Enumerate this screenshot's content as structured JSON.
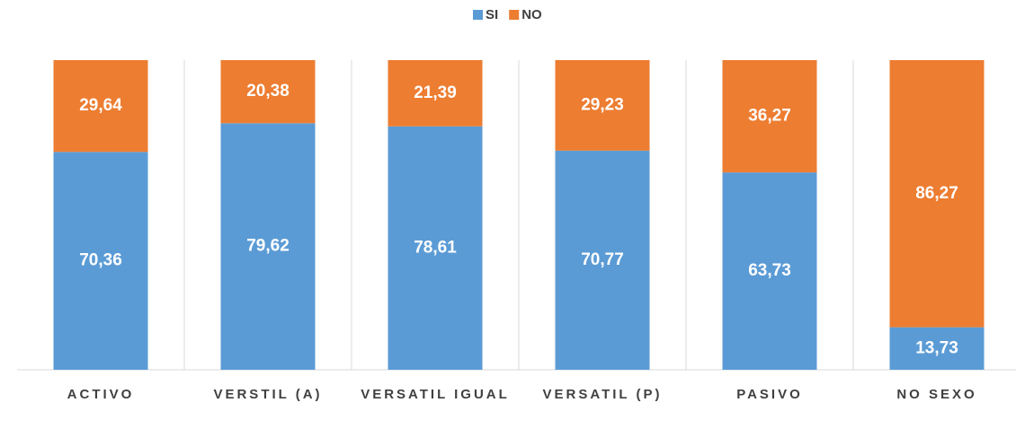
{
  "chart_data": {
    "type": "stacked_bar",
    "categories": [
      "ACTIVO",
      "VERSTIL (A)",
      "VERSATIL IGUAL",
      "VERSATIL (P)",
      "PASIVO",
      "NO SEXO"
    ],
    "series": [
      {
        "name": "SI",
        "color": "#5b9bd5",
        "values": [
          70.36,
          79.62,
          78.61,
          70.77,
          63.73,
          13.73
        ],
        "value_labels": [
          "70,36",
          "79,62",
          "78,61",
          "70,77",
          "63,73",
          "13,73"
        ]
      },
      {
        "name": "NO",
        "color": "#ed7d31",
        "values": [
          29.64,
          20.38,
          21.39,
          29.23,
          36.27,
          86.27
        ],
        "value_labels": [
          "29,64",
          "20,38",
          "21,39",
          "29,23",
          "36,27",
          "86,27"
        ]
      }
    ],
    "ylim": [
      0,
      100
    ],
    "legend": "top"
  }
}
